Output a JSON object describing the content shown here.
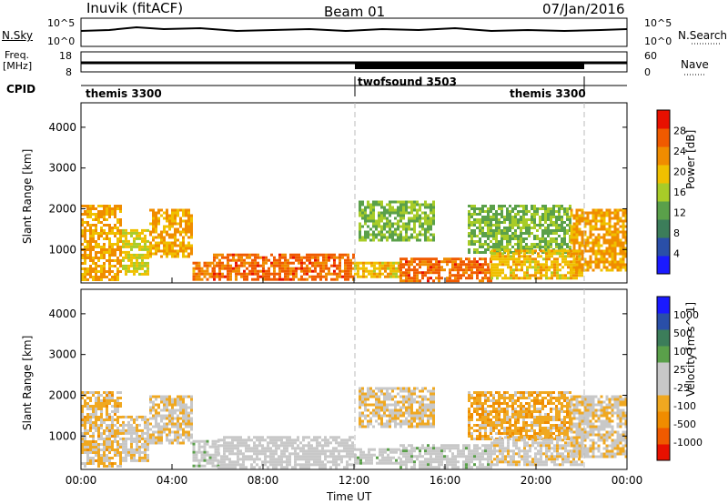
{
  "header": {
    "station": "Inuvik (fitACF)",
    "beam": "Beam 01",
    "date": "07/Jan/2016"
  },
  "top_panels": {
    "nsky_label": "N.Sky",
    "nsky_ticks": [
      "10^5",
      "10^0"
    ],
    "nsearch_label": "N.Search",
    "nsearch_ticks": [
      "10^5",
      "10^0"
    ],
    "freq_label_1": "Freq.",
    "freq_label_2": "[MHz]",
    "freq_ticks": [
      "18",
      "8"
    ],
    "nave_label": "Nave",
    "nave_ticks": [
      "60",
      "0"
    ],
    "cpid_label": "CPID"
  },
  "cpid_segments": [
    {
      "name": "themis 3300",
      "start_hour": 0,
      "end_hour": 12
    },
    {
      "name": "twofsound 3503",
      "start_hour": 12,
      "end_hour": 22
    },
    {
      "name": "themis 3300",
      "start_hour": 22,
      "end_hour": 24
    }
  ],
  "x_axis": {
    "label": "Time UT",
    "tick_labels": [
      "00:00",
      "04:00",
      "08:00",
      "12:00",
      "16:00",
      "20:00",
      "00:00"
    ],
    "range_hours": [
      0,
      24
    ]
  },
  "chart_data": [
    {
      "type": "heatmap",
      "panel": "power",
      "ylabel": "Slant Range [km]",
      "ylim": [
        180,
        4600
      ],
      "y_ticks": [
        "4000",
        "3000",
        "2000",
        "1000"
      ],
      "colorbar_label": "Power [dB]",
      "colorbar_ticks": [
        "28",
        "24",
        "20",
        "16",
        "12",
        "8",
        "4"
      ],
      "colorbar_range": [
        0,
        32
      ],
      "colors": [
        "#1a1aff",
        "#2a4fa8",
        "#3c7d5a",
        "#5aa04a",
        "#a8cc28",
        "#f0c000",
        "#f08c00",
        "#f05a00",
        "#e81000"
      ],
      "regions": [
        {
          "t0": 0.0,
          "t1": 1.8,
          "r0": 250,
          "r1": 2100,
          "value": 22
        },
        {
          "t0": 1.8,
          "t1": 3.0,
          "r0": 400,
          "r1": 1500,
          "value": 18
        },
        {
          "t0": 3.0,
          "t1": 4.9,
          "r0": 800,
          "r1": 2000,
          "value": 22
        },
        {
          "t0": 4.9,
          "t1": 5.8,
          "r0": 250,
          "r1": 700,
          "value": 24
        },
        {
          "t0": 5.8,
          "t1": 12.0,
          "r0": 250,
          "r1": 900,
          "value": 26
        },
        {
          "t0": 12.0,
          "t1": 14.0,
          "r0": 300,
          "r1": 700,
          "value": 20
        },
        {
          "t0": 12.2,
          "t1": 15.5,
          "r0": 1200,
          "r1": 2200,
          "value": 14
        },
        {
          "t0": 14.0,
          "t1": 18.0,
          "r0": 250,
          "r1": 800,
          "value": 26
        },
        {
          "t0": 17.0,
          "t1": 21.5,
          "r0": 900,
          "r1": 2100,
          "value": 14
        },
        {
          "t0": 18.0,
          "t1": 22.0,
          "r0": 300,
          "r1": 1000,
          "value": 20
        },
        {
          "t0": 21.5,
          "t1": 24.0,
          "r0": 500,
          "r1": 2000,
          "value": 22
        }
      ]
    },
    {
      "type": "heatmap",
      "panel": "velocity",
      "ylabel": "Slant Range [km]",
      "ylim": [
        180,
        4600
      ],
      "y_ticks": [
        "4000",
        "3000",
        "2000",
        "1000"
      ],
      "colorbar_label": "Velocity [m s^-1]",
      "colorbar_ticks": [
        "1000",
        "500",
        "100",
        "25",
        "-25",
        "-100",
        "-500",
        "-1000"
      ],
      "colorbar_range": [
        -1250,
        1250
      ],
      "colors": [
        "#e81000",
        "#f05a00",
        "#f08c00",
        "#f0a820",
        "#c8c8c8",
        "#c8c8c8",
        "#5aa04a",
        "#3c7d5a",
        "#2a4fa8",
        "#1a1aff"
      ],
      "regions": [
        {
          "t0": 0.0,
          "t1": 1.8,
          "r0": 250,
          "r1": 2100,
          "value": -300
        },
        {
          "t0": 1.8,
          "t1": 3.0,
          "r0": 400,
          "r1": 1500,
          "value": -150
        },
        {
          "t0": 3.0,
          "t1": 4.9,
          "r0": 800,
          "r1": 2000,
          "value": -200
        },
        {
          "t0": 4.9,
          "t1": 6.0,
          "r0": 250,
          "r1": 900,
          "value": 60
        },
        {
          "t0": 6.0,
          "t1": 12.0,
          "r0": 250,
          "r1": 1000,
          "value": 0
        },
        {
          "t0": 12.0,
          "t1": 14.0,
          "r0": 300,
          "r1": 700,
          "value": 80
        },
        {
          "t0": 12.2,
          "t1": 15.5,
          "r0": 1200,
          "r1": 2200,
          "value": -200
        },
        {
          "t0": 14.0,
          "t1": 18.0,
          "r0": 250,
          "r1": 800,
          "value": 50
        },
        {
          "t0": 17.0,
          "t1": 21.5,
          "r0": 900,
          "r1": 2100,
          "value": -400
        },
        {
          "t0": 18.0,
          "t1": 22.0,
          "r0": 300,
          "r1": 1000,
          "value": -150
        },
        {
          "t0": 21.5,
          "t1": 24.0,
          "r0": 500,
          "r1": 2000,
          "value": -200
        }
      ]
    }
  ]
}
